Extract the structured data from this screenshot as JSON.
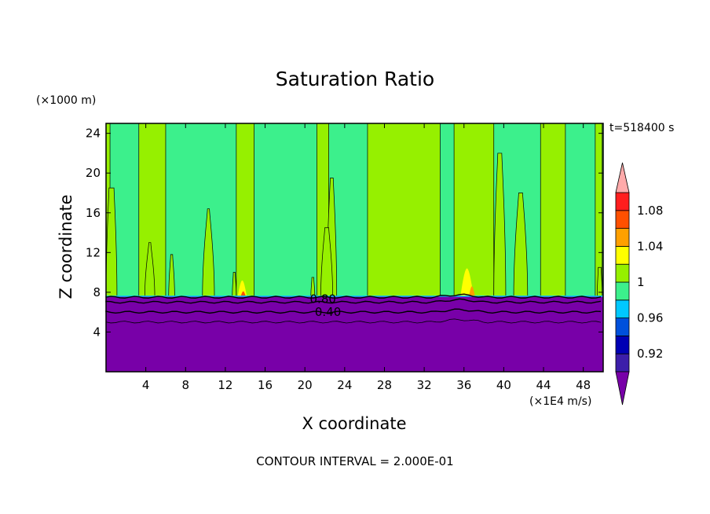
{
  "chart_data": {
    "type": "contour",
    "title": "Saturation Ratio",
    "xlabel": "X coordinate",
    "ylabel": "Z coordinate",
    "x_unit": "(×1E4 m/s)",
    "y_unit": "(×1000 m)",
    "time_label": "t=518400 s",
    "footer": "CONTOUR INTERVAL = 2.000E-01",
    "xlim": [
      0,
      50
    ],
    "ylim": [
      0,
      25
    ],
    "x_ticks": [
      4,
      8,
      12,
      16,
      20,
      24,
      28,
      32,
      36,
      40,
      44,
      48
    ],
    "y_ticks": [
      4,
      8,
      12,
      16,
      20,
      24
    ],
    "contour_labels": [
      {
        "text": "0.80",
        "x": 20.5,
        "z": 7.4
      },
      {
        "text": "0.40",
        "x": 21.0,
        "z": 6.1
      }
    ],
    "colorbar": {
      "levels": [
        0.92,
        0.96,
        1,
        1.04,
        1.08
      ],
      "colors": [
        "#7800a8",
        "#3c1eaa",
        "#0000b4",
        "#0050dc",
        "#00c8ff",
        "#3cf08c",
        "#96f000",
        "#ffff00",
        "#ffa000",
        "#ff5000",
        "#ff1e1e",
        "#ffaaaa"
      ]
    },
    "dry_layer_top_z": 7.6,
    "colors": {
      "dry": "#7800a8",
      "near_saturated": "#3cf08c",
      "saturated": "#96f000",
      "supersaturated": "#ffff00",
      "high": "#ffa000",
      "highest": "#ff5000"
    },
    "saturated_columns": [
      {
        "x0": 0.0,
        "x1": 0.4,
        "ztop": 25,
        "w_top": 0.3
      },
      {
        "x0": 0.0,
        "x1": 1.1,
        "ztop": 18.5,
        "w_top": 0.5
      },
      {
        "x0": 3.3,
        "x1": 6.0,
        "ztop": 25,
        "w_top": 2.7
      },
      {
        "x0": 3.9,
        "x1": 4.9,
        "ztop": 13.0,
        "w_top": 0.2
      },
      {
        "x0": 6.3,
        "x1": 6.9,
        "ztop": 11.8,
        "w_top": 0.2
      },
      {
        "x0": 9.7,
        "x1": 10.9,
        "ztop": 16.4,
        "w_top": 0.2
      },
      {
        "x0": 13.1,
        "x1": 14.9,
        "ztop": 25,
        "w_top": 1.8
      },
      {
        "x0": 12.7,
        "x1": 13.1,
        "ztop": 10.0,
        "w_top": 0.2
      },
      {
        "x0": 21.2,
        "x1": 22.4,
        "ztop": 25,
        "w_top": 1.0
      },
      {
        "x0": 22.2,
        "x1": 23.2,
        "ztop": 19.5,
        "w_top": 0.3
      },
      {
        "x0": 21.6,
        "x1": 22.8,
        "ztop": 14.5,
        "w_top": 0.4
      },
      {
        "x0": 20.6,
        "x1": 21.0,
        "ztop": 9.5,
        "w_top": 0.2
      },
      {
        "x0": 26.3,
        "x1": 33.6,
        "ztop": 25,
        "w_top": 7.3
      },
      {
        "x0": 35.0,
        "x1": 39.0,
        "ztop": 25,
        "w_top": 4.0
      },
      {
        "x0": 39.0,
        "x1": 40.2,
        "ztop": 22.0,
        "w_top": 0.4
      },
      {
        "x0": 41.0,
        "x1": 42.4,
        "ztop": 18.0,
        "w_top": 0.4
      },
      {
        "x0": 43.7,
        "x1": 46.2,
        "ztop": 25,
        "w_top": 2.5
      },
      {
        "x0": 49.2,
        "x1": 49.9,
        "ztop": 25,
        "w_top": 0.5
      },
      {
        "x0": 49.4,
        "x1": 49.9,
        "ztop": 10.5,
        "w_top": 0.3
      }
    ],
    "supersaturated_patches": [
      {
        "x": 13.7,
        "w": 0.9,
        "ztop": 9.2,
        "level": "supersaturated"
      },
      {
        "x": 36.3,
        "w": 1.3,
        "ztop": 10.4,
        "level": "supersaturated"
      },
      {
        "x": 36.8,
        "w": 0.6,
        "ztop": 8.6,
        "level": "high"
      },
      {
        "x": 13.8,
        "w": 0.5,
        "ztop": 8.1,
        "level": "highest"
      }
    ],
    "contour_lines_z": [
      7.5,
      7.0,
      6.0,
      5.0
    ]
  }
}
